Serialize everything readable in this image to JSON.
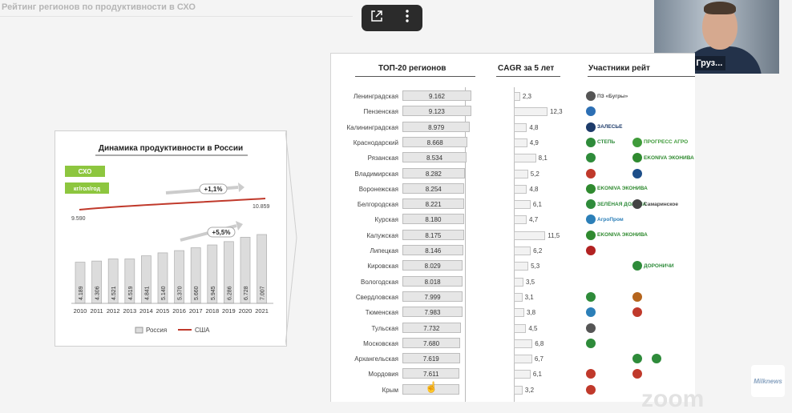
{
  "slide": {
    "title": "Рейтинг регионов по продуктивности в СХО"
  },
  "overlay": {
    "popout_icon": "popout-icon",
    "more_icon": "more-vertical-icon"
  },
  "webcam": {
    "name": "Алексей Груз..."
  },
  "chart_data": [
    {
      "type": "bar",
      "title": "Динамика продуктивности в России",
      "legend_box_label": "СХО",
      "unit_label": "кг/гол/год",
      "growth_label_top": "+1,1%",
      "growth_label_bottom": "+5,5%",
      "categories": [
        "2010",
        "2011",
        "2012",
        "2013",
        "2014",
        "2015",
        "2016",
        "2017",
        "2018",
        "2019",
        "2020",
        "2021"
      ],
      "series": [
        {
          "name": "Россия",
          "values": [
            4189,
            4306,
            4521,
            4519,
            4841,
            5140,
            5370,
            5660,
            5945,
            6286,
            6728,
            7007
          ],
          "labels": [
            "4.189",
            "4.306",
            "4.521",
            "4.519",
            "4.841",
            "5.140",
            "5.370",
            "5.660",
            "5.945",
            "6.286",
            "6.728",
            "7.007"
          ],
          "color": "#dcdcdc"
        },
        {
          "name": "США",
          "start": 9590,
          "end": 10859,
          "start_label": "9.590",
          "end_label": "10.859",
          "color": "#c0392b"
        }
      ],
      "legend_placement": "bottom"
    },
    {
      "type": "bar",
      "title": "ТОП-20 регионов",
      "categories": [
        "Ленинградская",
        "Пензенская",
        "Калининградская",
        "Краснодарский",
        "Рязанская",
        "Владимирская",
        "Воронежская",
        "Белгородская",
        "Курская",
        "Калужская",
        "Липецкая",
        "Кировская",
        "Вологодская",
        "Свердловская",
        "Тюменская",
        "Тульская",
        "Московская",
        "Архангельская",
        "Мордовия",
        "Крым"
      ],
      "values": [
        9162,
        9123,
        8979,
        8668,
        8534,
        8282,
        8254,
        8221,
        8180,
        8175,
        8146,
        8029,
        8018,
        7999,
        7983,
        7732,
        7680,
        7619,
        7611,
        7600
      ],
      "labels": [
        "9.162",
        "9.123",
        "8.979",
        "8.668",
        "8.534",
        "8.282",
        "8.254",
        "8.221",
        "8.180",
        "8.175",
        "8.146",
        "8.029",
        "8.018",
        "7.999",
        "7.983",
        "7.732",
        "7.680",
        "7.619",
        "7.611",
        ""
      ]
    },
    {
      "type": "bar",
      "title": "CAGR за 5 лет",
      "categories": [
        "Ленинградская",
        "Пензенская",
        "Калининградская",
        "Краснодарский",
        "Рязанская",
        "Владимирская",
        "Воронежская",
        "Белгородская",
        "Курская",
        "Калужская",
        "Липецкая",
        "Кировская",
        "Вологодская",
        "Свердловская",
        "Тюменская",
        "Тульская",
        "Московская",
        "Архангельская",
        "Мордовия",
        "Крым"
      ],
      "values": [
        2.3,
        12.3,
        4.8,
        4.9,
        8.1,
        5.2,
        4.8,
        6.1,
        4.7,
        11.5,
        6.2,
        5.3,
        3.5,
        3.1,
        3.8,
        4.5,
        6.8,
        6.7,
        6.1,
        3.2
      ],
      "labels": [
        "2,3",
        "12,3",
        "4,8",
        "4,9",
        "8,1",
        "5,2",
        "4,8",
        "6,1",
        "4,7",
        "11,5",
        "6,2",
        "5,3",
        "3,5",
        "3,1",
        "3,8",
        "4,5",
        "6,8",
        "6,7",
        "6,1",
        "3,2"
      ]
    }
  ],
  "participants": {
    "title": "Участники рейт",
    "logos": [
      {
        "row": 0,
        "col": 0,
        "text": "ПЗ «Бугры»",
        "color": "#555555",
        "icon": "bugry-logo"
      },
      {
        "row": 1,
        "col": 0,
        "text": "",
        "color": "#2c6fb4",
        "icon": "penza-logo"
      },
      {
        "row": 2,
        "col": 0,
        "text": "ЗАЛЕСЬЕ",
        "color": "#1d3b6a",
        "icon": "zalesie-logo"
      },
      {
        "row": 3,
        "col": 0,
        "text": "СТЕПЬ",
        "color": "#2e8b3a",
        "icon": "step-logo"
      },
      {
        "row": 3,
        "col": 1,
        "text": "ПРОГРЕСС АГРО",
        "color": "#3f9b3a",
        "icon": "progress-logo"
      },
      {
        "row": 4,
        "col": 0,
        "text": "",
        "color": "#2e8b3a",
        "icon": "ryazan-logo"
      },
      {
        "row": 4,
        "col": 1,
        "text": "EKONIVA ЭКОНИВА",
        "color": "#2f8a2f",
        "icon": "ekoniva-logo"
      },
      {
        "row": 5,
        "col": 0,
        "text": "",
        "color": "#c0392b",
        "icon": "vladimir-logo"
      },
      {
        "row": 5,
        "col": 1,
        "text": "",
        "color": "#1d4e89",
        "icon": "vladimir-logo-2"
      },
      {
        "row": 6,
        "col": 0,
        "text": "EKONIVA ЭКОНИВА",
        "color": "#2f8a2f",
        "icon": "ekoniva-logo"
      },
      {
        "row": 7,
        "col": 0,
        "text": "ЗЕЛЁНАЯ ДОЛИНА",
        "color": "#2e8b3a",
        "icon": "zelenaya-logo"
      },
      {
        "row": 7,
        "col": 1,
        "text": "Самаринское",
        "color": "#444444",
        "icon": "samarinskoe-logo"
      },
      {
        "row": 8,
        "col": 0,
        "text": "АгроПром",
        "color": "#2c7fb8",
        "icon": "agroprom-logo"
      },
      {
        "row": 9,
        "col": 0,
        "text": "EKONIVA ЭКОНИВА",
        "color": "#2f8a2f",
        "icon": "ekoniva-logo"
      },
      {
        "row": 10,
        "col": 0,
        "text": "",
        "color": "#b22222",
        "icon": "lipetsk-logo"
      },
      {
        "row": 11,
        "col": 1,
        "text": "ДОРОНИЧИ",
        "color": "#2e8b3a",
        "icon": "doronichi-logo"
      },
      {
        "row": 13,
        "col": 0,
        "text": "",
        "color": "#2e8b3a",
        "icon": "sverdlovsk-logo"
      },
      {
        "row": 13,
        "col": 1,
        "text": "",
        "color": "#b5651d",
        "icon": "sverdlovsk-logo-2"
      },
      {
        "row": 14,
        "col": 0,
        "text": "",
        "color": "#2c7fb8",
        "icon": "tyumen-logo"
      },
      {
        "row": 14,
        "col": 1,
        "text": "",
        "color": "#c0392b",
        "icon": "tyumen-logo-2"
      },
      {
        "row": 15,
        "col": 0,
        "text": "",
        "color": "#555555",
        "icon": "tula-logo"
      },
      {
        "row": 16,
        "col": 0,
        "text": "",
        "color": "#2e8b3a",
        "icon": "moscow-logo"
      },
      {
        "row": 17,
        "col": 1,
        "text": "",
        "color": "#2e8b3a",
        "icon": "arkhangelsk-logo"
      },
      {
        "row": 17,
        "col": 2,
        "text": "",
        "color": "#2e8b3a",
        "icon": "arkhangelsk-logo-2"
      },
      {
        "row": 18,
        "col": 0,
        "text": "",
        "color": "#c0392b",
        "icon": "mordovia-logo"
      },
      {
        "row": 18,
        "col": 1,
        "text": "",
        "color": "#c0392b",
        "icon": "mordovia-logo-2"
      },
      {
        "row": 19,
        "col": 0,
        "text": "",
        "color": "#c0392b",
        "icon": "crimea-logo"
      }
    ]
  },
  "watermark": {
    "text": "Milknews"
  },
  "zoom_mark": {
    "text": "zoom"
  }
}
